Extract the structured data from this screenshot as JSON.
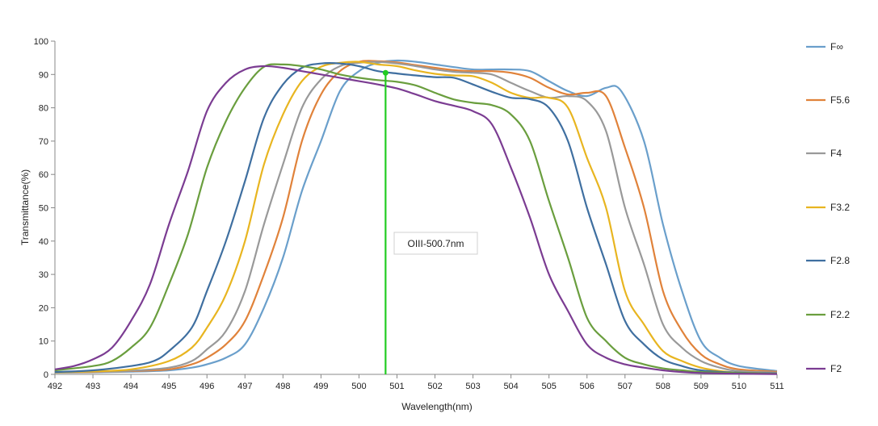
{
  "chart_data": {
    "type": "line",
    "xlabel": "Wavelength(nm)",
    "ylabel": "Transmittance(%)",
    "xlim": [
      492,
      511
    ],
    "ylim": [
      0,
      100
    ],
    "x_ticks": [
      "492",
      "493",
      "494",
      "495",
      "496",
      "497",
      "498",
      "499",
      "500",
      "501",
      "502",
      "503",
      "504",
      "505",
      "506",
      "507",
      "508",
      "509",
      "510",
      "511"
    ],
    "y_ticks": [
      "0",
      "10",
      "20",
      "30",
      "40",
      "50",
      "60",
      "70",
      "80",
      "90",
      "100"
    ],
    "grid": false,
    "legend_position": "right",
    "annotation": {
      "label": "OIII-500.7nm",
      "x": 500.7,
      "color": "#22cc22",
      "marker_y": 90.5
    },
    "series": [
      {
        "name": "F∞",
        "color": "#6a9fcb",
        "points": [
          [
            492,
            0.5
          ],
          [
            493,
            0.6
          ],
          [
            494,
            0.8
          ],
          [
            495,
            1.2
          ],
          [
            495.6,
            2
          ],
          [
            496,
            3
          ],
          [
            496.5,
            5
          ],
          [
            497,
            9
          ],
          [
            497.5,
            20
          ],
          [
            498,
            35
          ],
          [
            498.5,
            55
          ],
          [
            499,
            70
          ],
          [
            499.5,
            85
          ],
          [
            500,
            91
          ],
          [
            500.5,
            93.5
          ],
          [
            501,
            94.2
          ],
          [
            501.5,
            93.8
          ],
          [
            502,
            93
          ],
          [
            502.5,
            92.2
          ],
          [
            503,
            91.5
          ],
          [
            503.5,
            91.5
          ],
          [
            504,
            91.5
          ],
          [
            504.5,
            91
          ],
          [
            505,
            88
          ],
          [
            505.5,
            85
          ],
          [
            506,
            83.5
          ],
          [
            506.5,
            86
          ],
          [
            506.9,
            85
          ],
          [
            507.5,
            70
          ],
          [
            508,
            45
          ],
          [
            508.5,
            25
          ],
          [
            509,
            10
          ],
          [
            509.5,
            5
          ],
          [
            510,
            2.5
          ],
          [
            511,
            1
          ]
        ]
      },
      {
        "name": "F5.6",
        "color": "#e0823a",
        "points": [
          [
            492,
            0.6
          ],
          [
            493,
            0.7
          ],
          [
            494,
            1
          ],
          [
            495,
            1.5
          ],
          [
            495.6,
            3
          ],
          [
            496,
            5
          ],
          [
            496.5,
            9
          ],
          [
            497,
            16
          ],
          [
            497.5,
            30
          ],
          [
            498,
            47
          ],
          [
            498.5,
            70
          ],
          [
            499,
            84
          ],
          [
            499.5,
            91
          ],
          [
            500,
            93.8
          ],
          [
            500.5,
            94
          ],
          [
            501,
            93.6
          ],
          [
            501.5,
            92.8
          ],
          [
            502,
            92
          ],
          [
            502.5,
            91.3
          ],
          [
            503,
            91
          ],
          [
            503.5,
            91
          ],
          [
            504,
            90.5
          ],
          [
            504.5,
            89
          ],
          [
            505,
            86
          ],
          [
            505.5,
            84
          ],
          [
            506,
            84.5
          ],
          [
            506.5,
            83.5
          ],
          [
            507,
            68
          ],
          [
            507.5,
            50
          ],
          [
            508,
            25
          ],
          [
            508.5,
            13
          ],
          [
            509,
            6
          ],
          [
            509.5,
            3
          ],
          [
            510,
            1.5
          ],
          [
            511,
            0.8
          ]
        ]
      },
      {
        "name": "F4",
        "color": "#999999",
        "points": [
          [
            492,
            0.6
          ],
          [
            493,
            0.8
          ],
          [
            494,
            1.1
          ],
          [
            495,
            2
          ],
          [
            495.6,
            4
          ],
          [
            496,
            7.5
          ],
          [
            496.5,
            13
          ],
          [
            497,
            25
          ],
          [
            497.5,
            45
          ],
          [
            498,
            63
          ],
          [
            498.5,
            80
          ],
          [
            499,
            88.5
          ],
          [
            499.5,
            92.5
          ],
          [
            500,
            93.5
          ],
          [
            500.5,
            93.8
          ],
          [
            501,
            93.3
          ],
          [
            501.5,
            92.5
          ],
          [
            502,
            91.5
          ],
          [
            502.5,
            90.8
          ],
          [
            503,
            90.5
          ],
          [
            503.5,
            90
          ],
          [
            504,
            87.5
          ],
          [
            504.5,
            85
          ],
          [
            505,
            83
          ],
          [
            505.5,
            83.5
          ],
          [
            506,
            82
          ],
          [
            506.5,
            73
          ],
          [
            507,
            50
          ],
          [
            507.5,
            33
          ],
          [
            508,
            15
          ],
          [
            508.5,
            8
          ],
          [
            509,
            4
          ],
          [
            509.5,
            2
          ],
          [
            510,
            1
          ],
          [
            511,
            0.5
          ]
        ]
      },
      {
        "name": "F3.2",
        "color": "#e8b520",
        "points": [
          [
            492,
            0.6
          ],
          [
            493,
            0.9
          ],
          [
            494,
            1.5
          ],
          [
            495,
            4
          ],
          [
            495.6,
            8
          ],
          [
            496,
            14
          ],
          [
            496.5,
            24
          ],
          [
            497,
            40
          ],
          [
            497.5,
            63
          ],
          [
            498,
            78
          ],
          [
            498.5,
            88
          ],
          [
            499,
            92.3
          ],
          [
            499.5,
            93.5
          ],
          [
            500,
            93.8
          ],
          [
            500.5,
            93
          ],
          [
            501,
            92.5
          ],
          [
            501.5,
            91.2
          ],
          [
            502,
            90.2
          ],
          [
            502.5,
            89.7
          ],
          [
            503,
            89.5
          ],
          [
            503.5,
            87.5
          ],
          [
            504,
            84.5
          ],
          [
            504.5,
            83
          ],
          [
            505,
            83
          ],
          [
            505.5,
            80
          ],
          [
            506,
            65
          ],
          [
            506.5,
            50
          ],
          [
            507,
            25
          ],
          [
            507.5,
            15
          ],
          [
            508,
            7
          ],
          [
            508.5,
            4
          ],
          [
            509,
            2
          ],
          [
            509.5,
            1
          ],
          [
            510,
            0.5
          ],
          [
            511,
            0.3
          ]
        ]
      },
      {
        "name": "F2.8",
        "color": "#3f6fa0",
        "points": [
          [
            492,
            0.7
          ],
          [
            493,
            1.2
          ],
          [
            494,
            2.5
          ],
          [
            494.6,
            4
          ],
          [
            495,
            7
          ],
          [
            495.6,
            14
          ],
          [
            496,
            25
          ],
          [
            496.5,
            40
          ],
          [
            497,
            58
          ],
          [
            497.5,
            77
          ],
          [
            498,
            87
          ],
          [
            498.5,
            92
          ],
          [
            499,
            93.3
          ],
          [
            499.5,
            93.3
          ],
          [
            500,
            92.5
          ],
          [
            500.5,
            91
          ],
          [
            501,
            90.3
          ],
          [
            501.5,
            89.7
          ],
          [
            502,
            89.2
          ],
          [
            502.5,
            89
          ],
          [
            503,
            87
          ],
          [
            503.5,
            84.8
          ],
          [
            504,
            83
          ],
          [
            504.5,
            82.6
          ],
          [
            505,
            80
          ],
          [
            505.5,
            70
          ],
          [
            506,
            50
          ],
          [
            506.5,
            33
          ],
          [
            507,
            16
          ],
          [
            507.5,
            9
          ],
          [
            508,
            4.5
          ],
          [
            508.5,
            2.5
          ],
          [
            509,
            1.2
          ],
          [
            510,
            0.5
          ],
          [
            511,
            0.3
          ]
        ]
      },
      {
        "name": "F2.2",
        "color": "#6a9e3e",
        "points": [
          [
            492,
            1.2
          ],
          [
            493,
            2.5
          ],
          [
            493.5,
            4
          ],
          [
            494,
            8
          ],
          [
            494.5,
            14
          ],
          [
            495,
            27
          ],
          [
            495.5,
            42
          ],
          [
            496,
            62
          ],
          [
            496.5,
            76
          ],
          [
            497,
            86
          ],
          [
            497.5,
            92.3
          ],
          [
            498,
            93
          ],
          [
            498.5,
            92.5
          ],
          [
            499,
            91.5
          ],
          [
            499.5,
            90
          ],
          [
            500,
            89
          ],
          [
            500.5,
            88.3
          ],
          [
            501,
            87.8
          ],
          [
            501.5,
            86.7
          ],
          [
            502,
            84.5
          ],
          [
            502.5,
            82.5
          ],
          [
            503,
            81.5
          ],
          [
            503.5,
            80.8
          ],
          [
            504,
            78
          ],
          [
            504.5,
            70
          ],
          [
            505,
            52
          ],
          [
            505.5,
            35
          ],
          [
            506,
            17
          ],
          [
            506.5,
            10
          ],
          [
            507,
            5
          ],
          [
            507.5,
            3
          ],
          [
            508,
            1.8
          ],
          [
            508.5,
            1.2
          ],
          [
            509,
            0.7
          ],
          [
            510,
            0.4
          ],
          [
            511,
            0.2
          ]
        ]
      },
      {
        "name": "F2",
        "color": "#7b3c92",
        "points": [
          [
            492,
            1.5
          ],
          [
            492.5,
            2.5
          ],
          [
            493,
            4.5
          ],
          [
            493.5,
            8
          ],
          [
            494,
            16
          ],
          [
            494.5,
            27
          ],
          [
            495,
            45
          ],
          [
            495.5,
            61
          ],
          [
            496,
            79
          ],
          [
            496.5,
            87.5
          ],
          [
            497,
            91.5
          ],
          [
            497.5,
            92.5
          ],
          [
            498,
            92
          ],
          [
            498.5,
            91
          ],
          [
            499,
            90
          ],
          [
            499.5,
            89
          ],
          [
            500,
            88
          ],
          [
            500.5,
            87
          ],
          [
            501,
            85.8
          ],
          [
            501.5,
            84
          ],
          [
            502,
            82
          ],
          [
            502.5,
            80.6
          ],
          [
            503,
            79
          ],
          [
            503.5,
            75
          ],
          [
            504,
            62
          ],
          [
            504.5,
            47
          ],
          [
            505,
            30
          ],
          [
            505.5,
            19
          ],
          [
            506,
            9
          ],
          [
            506.5,
            5
          ],
          [
            507,
            3
          ],
          [
            507.5,
            2
          ],
          [
            508,
            1.2
          ],
          [
            508.5,
            0.7
          ],
          [
            509,
            0.4
          ],
          [
            510,
            0.2
          ],
          [
            511,
            0.1
          ]
        ]
      }
    ]
  }
}
